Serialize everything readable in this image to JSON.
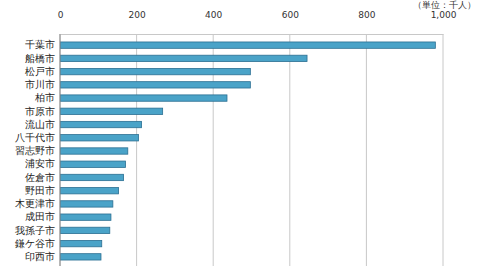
{
  "chart_data": {
    "type": "bar",
    "orientation": "horizontal",
    "xlabel": "（単位：千人）",
    "categories": [
      "千葉市",
      "船橋市",
      "松戸市",
      "市川市",
      "柏市",
      "市原市",
      "流山市",
      "八千代市",
      "習志野市",
      "浦安市",
      "佐倉市",
      "野田市",
      "木更津市",
      "成田市",
      "我孫子市",
      "鎌ケ谷市",
      "印西市"
    ],
    "values": [
      980,
      645,
      497,
      497,
      436,
      268,
      213,
      205,
      177,
      171,
      166,
      153,
      138,
      133,
      130,
      109,
      107
    ],
    "color": "#4aa3c8",
    "xlim": [
      0,
      1000
    ],
    "xticks": [
      0,
      200,
      400,
      600,
      800,
      {
        "value": 1000,
        "label": "1,000"
      }
    ],
    "grid": true
  }
}
